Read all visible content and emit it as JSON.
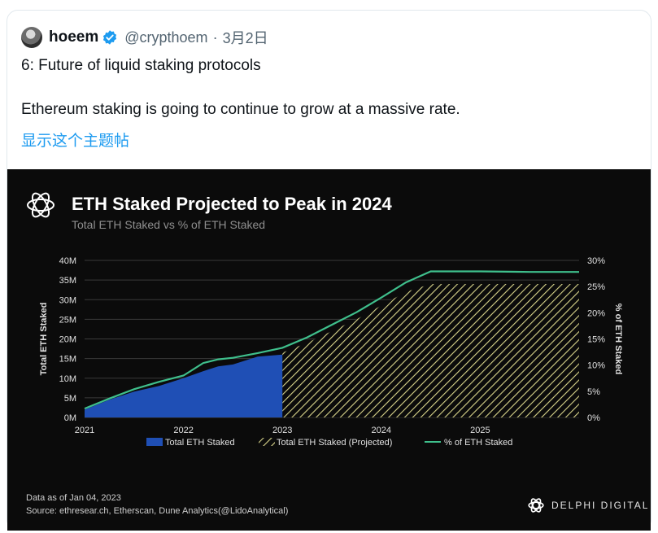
{
  "tweet": {
    "display_name": "hoeem",
    "handle": "@crypthoem",
    "separator": "·",
    "date": "3月2日",
    "text_line1": "6: Future of liquid staking protocols",
    "text_line2": "Ethereum staking is going to continue to grow at a massive rate.",
    "thread_link": "显示这个主题帖"
  },
  "chart_header": {
    "title": "ETH Staked Projected to Peak in 2024",
    "subtitle": "Total ETH Staked vs % of ETH Staked"
  },
  "footnote": {
    "line1": "Data as of Jan 04, 2023",
    "line2": "Source: ethresear.ch, Etherscan, Dune Analytics(@LidoAnalytical)"
  },
  "brand": {
    "name": "DELPHI DIGITAL"
  },
  "colors": {
    "verified": "#1d9bf0",
    "link": "#1d9bf0",
    "actual_fill": "#1f4fb5",
    "projected_hatch": "#d8d48a",
    "pct_line": "#3fbf8c",
    "panel_bg": "#0b0b0b"
  },
  "chart_data": {
    "type": "area",
    "title": "ETH Staked Projected to Peak in 2024",
    "subtitle": "Total ETH Staked vs % of ETH Staked",
    "ylabel": "Total ETH Staked",
    "y2label": "% of ETH Staked",
    "ylim": [
      0,
      40
    ],
    "y_ticks": [
      "0M",
      "5M",
      "10M",
      "15M",
      "20M",
      "25M",
      "30M",
      "35M",
      "40M"
    ],
    "y2lim": [
      0,
      30
    ],
    "y2_ticks": [
      "0%",
      "5%",
      "10%",
      "15%",
      "20%",
      "25%",
      "30%"
    ],
    "x_ticks": [
      "2021",
      "2022",
      "2023",
      "2024",
      "2025"
    ],
    "grid": true,
    "legend_position": "bottom",
    "series": [
      {
        "name": "Total ETH Staked",
        "style": "area",
        "x": [
          2021.0,
          2021.25,
          2021.5,
          2021.75,
          2022.0,
          2022.2,
          2022.35,
          2022.5,
          2022.75,
          2023.0
        ],
        "y": [
          2.0,
          4.5,
          6.6,
          8.0,
          10.0,
          11.8,
          13.0,
          13.5,
          15.5,
          16.0
        ]
      },
      {
        "name": "Total ETH Staked (Projected)",
        "style": "hatched-area",
        "x": [
          2023.0,
          2023.25,
          2023.5,
          2023.75,
          2024.0,
          2024.25,
          2024.5,
          2024.6,
          2025.0,
          2025.5,
          2026.0
        ],
        "y": [
          16.5,
          19.0,
          22.0,
          25.0,
          28.5,
          32.0,
          34.0,
          34.0,
          34.0,
          34.0,
          34.0
        ]
      },
      {
        "name": "% of ETH Staked",
        "style": "line",
        "axis": "right",
        "x": [
          2021.0,
          2021.25,
          2021.5,
          2021.75,
          2022.0,
          2022.2,
          2022.35,
          2022.5,
          2022.75,
          2023.0,
          2023.25,
          2023.5,
          2023.75,
          2024.0,
          2024.25,
          2024.5,
          2024.6,
          2025.0,
          2025.5,
          2026.0
        ],
        "y": [
          1.7,
          3.6,
          5.4,
          6.8,
          8.0,
          10.4,
          11.1,
          11.4,
          12.3,
          13.3,
          15.3,
          17.7,
          20.1,
          22.9,
          25.8,
          27.9,
          27.9,
          27.9,
          27.8,
          27.8
        ]
      }
    ]
  }
}
